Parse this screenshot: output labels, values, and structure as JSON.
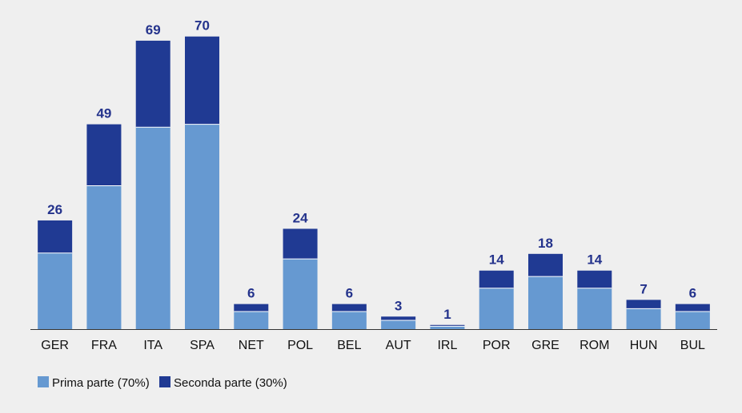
{
  "chart_data": {
    "type": "bar",
    "stacked": true,
    "categories": [
      "GER",
      "FRA",
      "ITA",
      "SPA",
      "NET",
      "POL",
      "BEL",
      "AUT",
      "IRL",
      "POR",
      "GRE",
      "ROM",
      "HUN",
      "BUL"
    ],
    "series": [
      {
        "name": "Prima parte (70%)",
        "color": "#6699d1",
        "values": [
          18.2,
          34.3,
          48.3,
          49.0,
          4.2,
          16.8,
          4.2,
          2.1,
          0.7,
          9.8,
          12.6,
          9.8,
          4.9,
          4.2
        ]
      },
      {
        "name": "Seconda parte (30%)",
        "color": "#203a93",
        "values": [
          7.8,
          14.7,
          20.7,
          21.0,
          1.8,
          7.2,
          1.8,
          0.9,
          0.3,
          4.2,
          5.4,
          4.2,
          2.1,
          1.8
        ]
      }
    ],
    "totals": [
      "26",
      "49",
      "69",
      "70",
      "6",
      "24",
      "6",
      "3",
      "1",
      "14",
      "18",
      "14",
      "7",
      "6"
    ],
    "ylim": [
      0,
      73
    ],
    "legend_position": "bottom-left",
    "grid": false
  }
}
